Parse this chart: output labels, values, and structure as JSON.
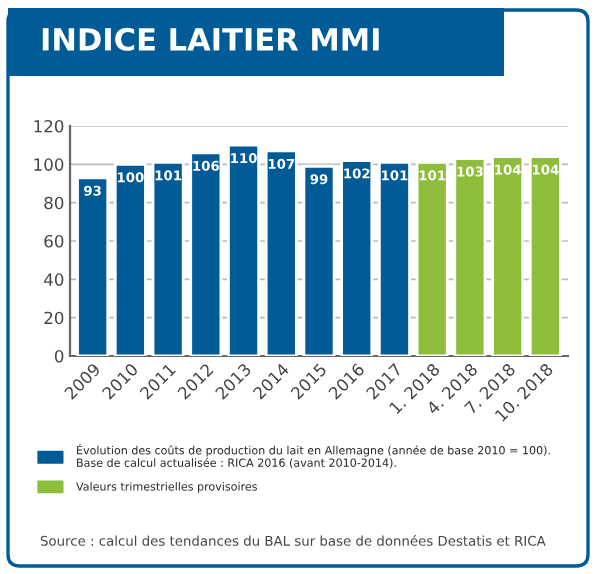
{
  "chart_data": {
    "type": "bar",
    "title": "INDICE LAITIER MMI",
    "categories": [
      "2009",
      "2010",
      "2011",
      "2012",
      "2013",
      "2014",
      "2015",
      "2016",
      "2017",
      "1. 2018",
      "4. 2018",
      "7. 2018",
      "10. 2018"
    ],
    "series": [
      {
        "name": "Évolution des coûts de production du lait en Allemagne (année de base 2010 = 100).\nBase de calcul actualisée : RICA 2016 (avant 2010-2014).",
        "color": "#005b96",
        "values": [
          93,
          100,
          101,
          106,
          110,
          107,
          99,
          102,
          101,
          null,
          null,
          null,
          null
        ]
      },
      {
        "name": "Valeurs trimestrielles provisoires",
        "color": "#8dbd3a",
        "values": [
          null,
          null,
          null,
          null,
          null,
          null,
          null,
          null,
          null,
          101,
          103,
          104,
          104
        ]
      }
    ],
    "ylim": [
      0,
      120
    ],
    "yticks": [
      0,
      20,
      40,
      60,
      80,
      100,
      120
    ],
    "grid": "y",
    "data_labels": true,
    "legend": "bottom",
    "annotations": [
      "Source : calcul des tendances du BAL sur base de données Destatis et RICA"
    ]
  }
}
